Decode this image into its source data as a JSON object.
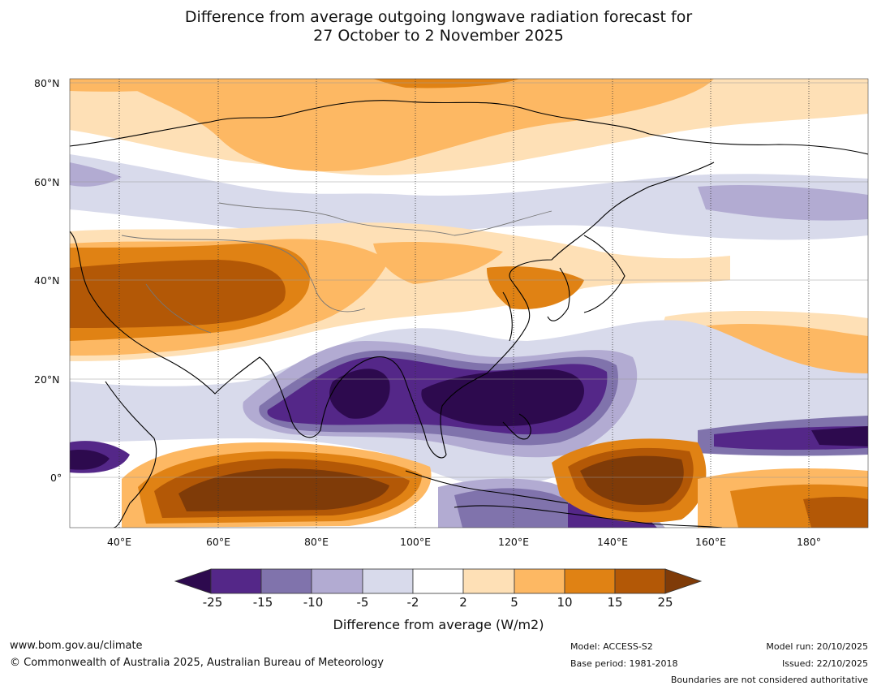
{
  "title": {
    "line1": "Difference from average outgoing longwave radiation forecast for",
    "line2": "27 October to 2 November 2025"
  },
  "axes": {
    "lat_labels": [
      "80°N",
      "60°N",
      "40°N",
      "20°N",
      "0°"
    ],
    "lon_labels": [
      "40°E",
      "60°E",
      "80°E",
      "100°E",
      "120°E",
      "140°E",
      "160°E",
      "180°"
    ]
  },
  "colorbar": {
    "title": "Difference from average (W/m2)",
    "ticks": [
      "-25",
      "-15",
      "-10",
      "-5",
      "-2",
      "2",
      "5",
      "10",
      "15",
      "25"
    ],
    "colors": {
      "extend_low": "#2d0a4e",
      "c1": "#542788",
      "c2": "#8073ac",
      "c3": "#b2abd2",
      "c4": "#d8daeb",
      "c5": "#ffffff",
      "c6": "#fee0b6",
      "c7": "#fdb863",
      "c8": "#e08214",
      "c9": "#b35806",
      "extend_high": "#7f3b08"
    }
  },
  "footer": {
    "website": "www.bom.gov.au/climate",
    "copyright": "© Commonwealth of Australia 2025, Australian Bureau of Meteorology",
    "model": "Model: ACCESS-S2",
    "base_period": "Base period: 1981-2018",
    "model_run": "Model run: 20/10/2025",
    "issued": "Issued: 22/10/2025",
    "disclaimer": "Boundaries are not considered authoritative"
  }
}
